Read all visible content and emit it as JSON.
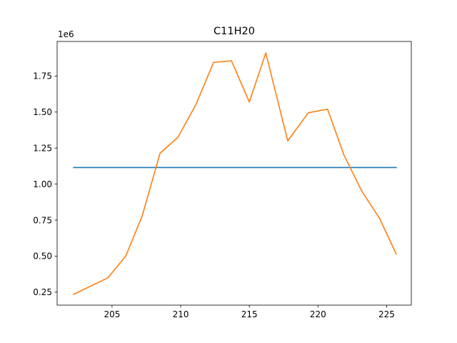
{
  "chart_data": {
    "type": "line",
    "title": "C11H20",
    "xlabel": "",
    "ylabel": "",
    "y_scale_label": "1e6",
    "xlim": [
      201.0,
      226.8
    ],
    "ylim": [
      0.16,
      1.99
    ],
    "x_ticks": [
      205,
      210,
      215,
      220,
      225
    ],
    "y_ticks": [
      0.25,
      0.5,
      0.75,
      1.0,
      1.25,
      1.5,
      1.75
    ],
    "x_tick_labels": [
      "205",
      "210",
      "215",
      "220",
      "225"
    ],
    "y_tick_labels": [
      "0.25",
      "0.50",
      "0.75",
      "1.00",
      "1.25",
      "1.50",
      "1.75"
    ],
    "grid": false,
    "series": [
      {
        "color": "#1f77b4",
        "x": [
          202.2,
          225.7
        ],
        "y": [
          1.115,
          1.115
        ]
      },
      {
        "color": "#ff7f0e",
        "x": [
          202.2,
          204.7,
          206.0,
          207.2,
          208.5,
          209.8,
          211.1,
          212.4,
          213.7,
          215.0,
          216.2,
          217.8,
          219.3,
          220.7,
          221.9,
          223.2,
          224.5,
          225.7
        ],
        "y": [
          0.235,
          0.35,
          0.5,
          0.78,
          1.215,
          1.325,
          1.55,
          1.845,
          1.855,
          1.57,
          1.91,
          1.3,
          1.495,
          1.52,
          1.2,
          0.95,
          0.76,
          0.515
        ]
      }
    ]
  }
}
